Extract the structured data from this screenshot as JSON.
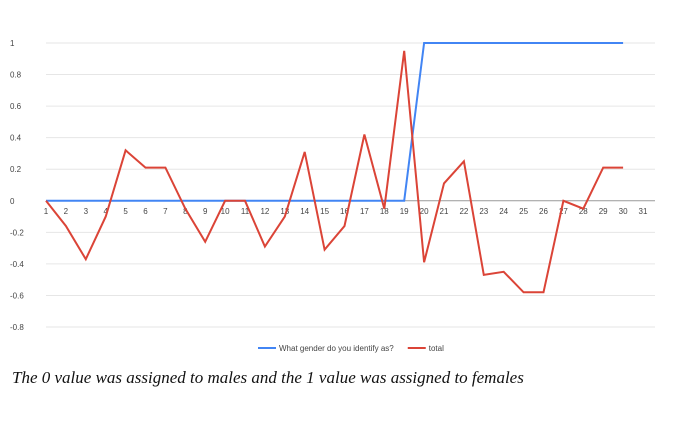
{
  "chart_data": {
    "type": "line",
    "x": [
      1,
      2,
      3,
      4,
      5,
      6,
      7,
      8,
      9,
      10,
      11,
      12,
      13,
      14,
      15,
      16,
      17,
      18,
      19,
      20,
      21,
      22,
      23,
      24,
      25,
      26,
      27,
      28,
      29,
      30
    ],
    "x_ticks": [
      1,
      2,
      3,
      4,
      5,
      6,
      7,
      8,
      9,
      10,
      11,
      12,
      13,
      14,
      15,
      16,
      17,
      18,
      19,
      20,
      21,
      22,
      23,
      24,
      25,
      26,
      27,
      28,
      29,
      30,
      31
    ],
    "y_ticks": [
      "1",
      "0.8",
      "0.6",
      "0.4",
      "0.2",
      "0",
      "-0.2",
      "-0.4",
      "-0.6",
      "-0.8"
    ],
    "ylim": [
      -0.8,
      1
    ],
    "xlim": [
      1,
      31
    ],
    "grid": true,
    "legend_position": "bottom",
    "series": [
      {
        "name": "What gender do you identify as?",
        "color": "#4285f4",
        "values": [
          0,
          0,
          0,
          0,
          0,
          0,
          0,
          0,
          0,
          0,
          0,
          0,
          0,
          0,
          0,
          0,
          0,
          0,
          0,
          1,
          1,
          1,
          1,
          1,
          1,
          1,
          1,
          1,
          1,
          1
        ]
      },
      {
        "name": "total",
        "color": "#db4437",
        "values": [
          0,
          -0.16,
          -0.37,
          -0.1,
          0.32,
          0.21,
          0.21,
          -0.05,
          -0.26,
          0,
          0,
          -0.29,
          -0.1,
          0.31,
          -0.31,
          -0.16,
          0.42,
          -0.05,
          0.95,
          -0.39,
          0.11,
          0.25,
          -0.47,
          -0.45,
          -0.58,
          -0.58,
          0,
          -0.05,
          0.21,
          0.21
        ]
      }
    ]
  },
  "caption": "The 0 value was assigned to males and the 1 value was assigned to females"
}
